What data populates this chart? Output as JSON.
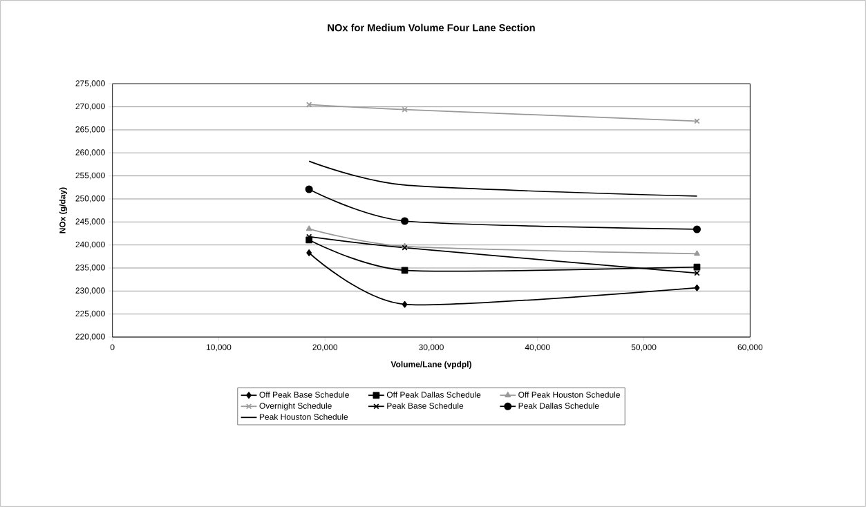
{
  "chart_data": {
    "type": "line",
    "title": "NOx for Medium Volume Four Lane Section",
    "xlabel": "Volume/Lane (vpdpl)",
    "ylabel": "NOx (g/day)",
    "x": [
      18500,
      27500,
      55000
    ],
    "series": [
      {
        "name": "Off Peak Base Schedule",
        "color": "#000000",
        "marker": "diamond",
        "values": [
          238300,
          227100,
          230700
        ]
      },
      {
        "name": "Off Peak Dallas Schedule",
        "color": "#000000",
        "marker": "square",
        "values": [
          241100,
          234500,
          235200
        ]
      },
      {
        "name": "Off Peak Houston Schedule",
        "color": "#999999",
        "marker": "triangle",
        "values": [
          243500,
          239700,
          238100
        ]
      },
      {
        "name": "Overnight Schedule",
        "color": "#999999",
        "marker": "cross",
        "values": [
          270500,
          269400,
          266900
        ]
      },
      {
        "name": "Peak Base Schedule",
        "color": "#000000",
        "marker": "cross",
        "values": [
          241800,
          239400,
          233900
        ]
      },
      {
        "name": "Peak Dallas Schedule",
        "color": "#000000",
        "marker": "circle",
        "values": [
          252100,
          245200,
          243400
        ]
      },
      {
        "name": "Peak Houston Schedule",
        "color": "#000000",
        "marker": "none",
        "values": [
          258200,
          253000,
          250600
        ]
      }
    ],
    "xlim": [
      0,
      60000
    ],
    "xticks": [
      {
        "value": 0,
        "label": "0"
      },
      {
        "value": 10000,
        "label": "10,000"
      },
      {
        "value": 20000,
        "label": "20,000"
      },
      {
        "value": 30000,
        "label": "30,000"
      },
      {
        "value": 40000,
        "label": "40,000"
      },
      {
        "value": 50000,
        "label": "50,000"
      },
      {
        "value": 60000,
        "label": "60,000"
      }
    ],
    "ylim": [
      220000,
      275000
    ],
    "yticks": [
      {
        "value": 220000,
        "label": "220,000"
      },
      {
        "value": 225000,
        "label": "225,000"
      },
      {
        "value": 230000,
        "label": "230,000"
      },
      {
        "value": 235000,
        "label": "235,000"
      },
      {
        "value": 240000,
        "label": "240,000"
      },
      {
        "value": 245000,
        "label": "245,000"
      },
      {
        "value": 250000,
        "label": "250,000"
      },
      {
        "value": 255000,
        "label": "255,000"
      },
      {
        "value": 260000,
        "label": "260,000"
      },
      {
        "value": 265000,
        "label": "265,000"
      },
      {
        "value": 270000,
        "label": "270,000"
      },
      {
        "value": 275000,
        "label": "275,000"
      }
    ],
    "grid": "y",
    "legend": "bottom",
    "line_style": "solid"
  }
}
